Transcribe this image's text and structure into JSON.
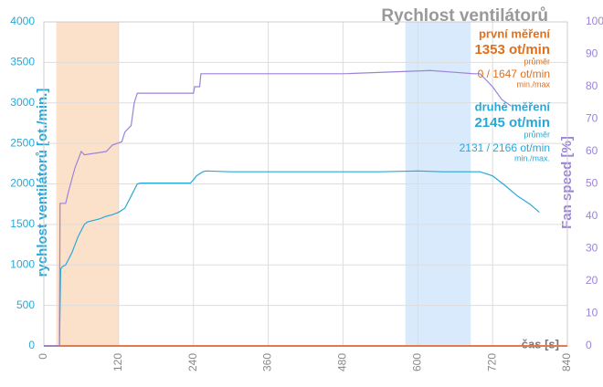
{
  "chart_data": {
    "type": "line",
    "title": "Rychlost ventilátorů",
    "x_label": "čas [s]",
    "y_label": "rychlost ventilátorů [ot./min.]",
    "y2_label": "Fan speed [%]",
    "xlim": [
      0,
      840
    ],
    "xticks": [
      0,
      120,
      240,
      360,
      480,
      600,
      720,
      840
    ],
    "ylim": [
      0,
      4000
    ],
    "yticks": [
      0,
      500,
      1000,
      1500,
      2000,
      2500,
      3000,
      3500,
      4000
    ],
    "y2lim": [
      0,
      100
    ],
    "y2ticks": [
      0,
      10,
      20,
      30,
      40,
      50,
      60,
      70,
      80,
      90,
      100
    ],
    "grid": true,
    "regions": [
      {
        "x": [
          20,
          120
        ],
        "color": "#fbd9bd"
      },
      {
        "x": [
          580,
          685
        ],
        "color": "#cfe5fb"
      }
    ],
    "series": [
      {
        "name": "druhé měření",
        "color": "#29a8d8",
        "x": [
          0,
          25,
          27,
          30,
          35,
          45,
          55,
          65,
          70,
          80,
          90,
          100,
          110,
          120,
          130,
          140,
          150,
          155,
          180,
          210,
          235,
          240,
          245,
          255,
          260,
          300,
          360,
          420,
          480,
          540,
          600,
          640,
          680,
          700,
          720,
          740,
          760,
          780,
          795
        ],
        "values": [
          0,
          0,
          950,
          980,
          1000,
          1150,
          1350,
          1500,
          1530,
          1550,
          1570,
          1600,
          1620,
          1650,
          1700,
          1850,
          2000,
          2010,
          2010,
          2010,
          2010,
          2050,
          2100,
          2150,
          2160,
          2150,
          2150,
          2150,
          2150,
          2150,
          2160,
          2150,
          2150,
          2150,
          2100,
          1980,
          1850,
          1750,
          1650
        ]
      },
      {
        "name": "Fan speed",
        "color": "#9b84d6",
        "axis": "y2",
        "x": [
          0,
          25,
          26,
          35,
          40,
          50,
          60,
          65,
          100,
          110,
          125,
          130,
          140,
          145,
          150,
          240,
          242,
          250,
          252,
          480,
          620,
          690,
          700,
          720,
          735,
          750
        ],
        "values": [
          0,
          0,
          44,
          44,
          48,
          55,
          60,
          59,
          60,
          62,
          63,
          66,
          68,
          75,
          78,
          78,
          80,
          80,
          84,
          84,
          85,
          84,
          84,
          80,
          76,
          74
        ]
      }
    ],
    "annotations": [
      {
        "text": "první měření",
        "color": "#e0701c",
        "size": 13
      },
      {
        "text": "1353 ot/min",
        "color": "#e0701c",
        "size": 15
      },
      {
        "text": "průměr",
        "color": "#e0701c",
        "size": 9
      },
      {
        "text": "0 / 1647 ot/min",
        "color": "#e0701c",
        "size": 12
      },
      {
        "text": "min./max",
        "color": "#e0701c",
        "size": 9
      },
      {
        "text": "druhé měření",
        "color": "#29a8d8",
        "size": 13
      },
      {
        "text": "2145 ot/min",
        "color": "#29a8d8",
        "size": 15
      },
      {
        "text": "průměr",
        "color": "#29a8d8",
        "size": 9
      },
      {
        "text": "2131 / 2166 ot/min",
        "color": "#29a8d8",
        "size": 12
      },
      {
        "text": "min./max.",
        "color": "#29a8d8",
        "size": 9
      }
    ]
  }
}
